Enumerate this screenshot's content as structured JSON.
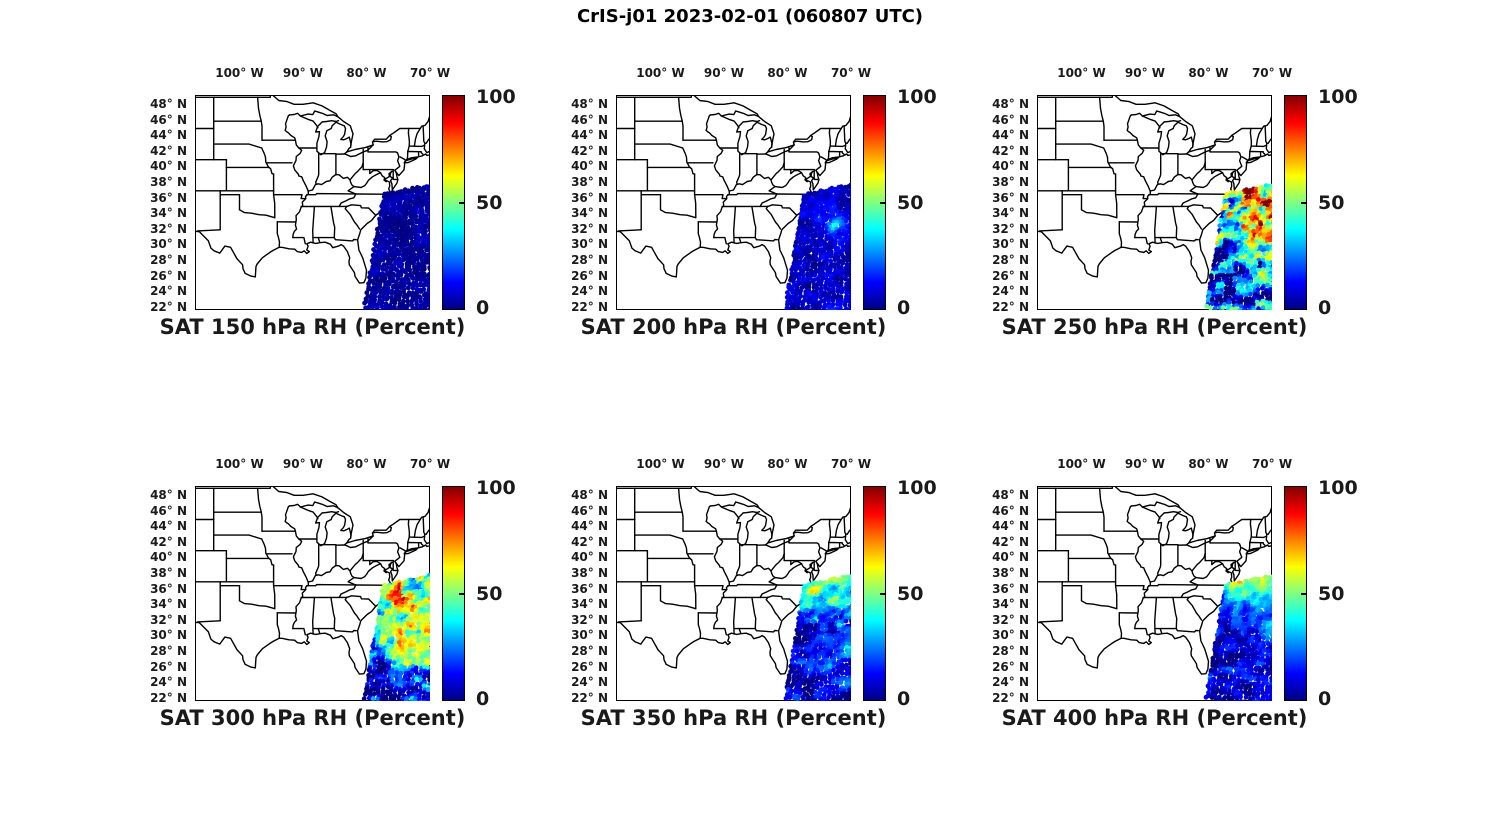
{
  "figure_title": "CrIS-j01 2023-02-01 (060807 UTC)",
  "colorbar": {
    "max": "100",
    "mid": "50",
    "min": "0"
  },
  "axes": {
    "lon_tick_labels": [
      "100° W",
      "90° W",
      "80° W",
      "70° W"
    ],
    "lon_tick_deg": [
      -100,
      -90,
      -80,
      -70
    ],
    "lat_tick_labels": [
      "48° N",
      "46° N",
      "44° N",
      "42° N",
      "40° N",
      "38° N",
      "36° N",
      "34° N",
      "32° N",
      "30° N",
      "28° N",
      "26° N",
      "24° N",
      "22° N"
    ],
    "lat_tick_deg": [
      48,
      46,
      44,
      42,
      40,
      38,
      36,
      34,
      32,
      30,
      28,
      26,
      24,
      22
    ]
  },
  "chart_data": {
    "type": "scatter",
    "subtype": "satellite-swath-map",
    "title": "CrIS-j01 2023-02-01 (060807 UTC)",
    "variable": "Relative Humidity",
    "units": "Percent",
    "basemap": "Conterminous US state boundaries (eastern/central)",
    "lon_range": [
      -107,
      -70
    ],
    "lat_range": [
      21.7,
      49.3
    ],
    "lon_ticks_deg_w": [
      100,
      90,
      80,
      70
    ],
    "lat_ticks_deg_n": [
      48,
      46,
      44,
      42,
      40,
      38,
      36,
      34,
      32,
      30,
      28,
      26,
      24,
      22
    ],
    "swath_extent": {
      "lon": [
        -77.6,
        -65.3
      ],
      "lat": [
        21.8,
        37.6
      ]
    },
    "colorbar": {
      "min": 0,
      "max": 100,
      "ticks": [
        0,
        50,
        100
      ],
      "colormap": "jet",
      "colormap_hex": [
        "#000084",
        "#0000ff",
        "#00ffff",
        "#80ff80",
        "#ffff00",
        "#ff0000",
        "#840000"
      ]
    },
    "panels": [
      {
        "title": "SAT 150 hPa RH (Percent)",
        "pressure_hpa": 150,
        "texture_variability": 2,
        "rh_grid": [
          [
            4,
            3,
            3,
            4,
            3,
            3
          ],
          [
            3,
            4,
            3,
            3,
            4,
            3
          ],
          [
            4,
            3,
            4,
            3,
            3,
            4
          ],
          [
            3,
            3,
            4,
            4,
            3,
            3
          ],
          [
            4,
            4,
            3,
            3,
            4,
            3
          ],
          [
            3,
            3,
            3,
            4,
            3,
            4
          ],
          [
            4,
            3,
            4,
            3,
            4,
            3
          ],
          [
            3,
            4,
            3,
            3,
            3,
            4
          ],
          [
            3,
            3,
            4,
            3,
            4,
            3
          ],
          [
            4,
            3,
            3,
            4,
            3,
            3
          ],
          [
            3,
            4,
            3,
            3,
            4,
            4
          ],
          [
            4,
            3,
            4,
            3,
            3,
            3
          ],
          [
            3,
            3,
            3,
            4,
            4,
            3
          ],
          [
            3,
            4,
            3,
            3,
            3,
            4
          ]
        ]
      },
      {
        "title": "SAT 200 hPa RH (Percent)",
        "pressure_hpa": 200,
        "texture_variability": 4,
        "rh_grid": [
          [
            8,
            7,
            7,
            8,
            7,
            7
          ],
          [
            7,
            8,
            9,
            8,
            7,
            8
          ],
          [
            8,
            9,
            14,
            10,
            8,
            7
          ],
          [
            8,
            10,
            18,
            12,
            9,
            8
          ],
          [
            7,
            9,
            12,
            38,
            22,
            9
          ],
          [
            8,
            8,
            9,
            14,
            10,
            8
          ],
          [
            7,
            8,
            8,
            9,
            8,
            7
          ],
          [
            7,
            7,
            8,
            8,
            7,
            7
          ],
          [
            8,
            7,
            7,
            8,
            8,
            7
          ],
          [
            7,
            8,
            7,
            7,
            8,
            7
          ],
          [
            7,
            7,
            8,
            7,
            7,
            8
          ],
          [
            8,
            7,
            7,
            8,
            7,
            7
          ],
          [
            7,
            8,
            7,
            7,
            7,
            7
          ],
          [
            7,
            7,
            8,
            7,
            7,
            7
          ]
        ]
      },
      {
        "title": "SAT 250 hPa RH (Percent)",
        "pressure_hpa": 250,
        "texture_variability": 22,
        "rh_grid": [
          [
            45,
            70,
            90,
            55,
            80,
            60
          ],
          [
            60,
            35,
            85,
            95,
            45,
            75
          ],
          [
            30,
            75,
            50,
            88,
            92,
            40
          ],
          [
            55,
            40,
            95,
            60,
            35,
            85
          ],
          [
            35,
            60,
            45,
            75,
            55,
            50
          ],
          [
            25,
            45,
            60,
            55,
            70,
            60
          ],
          [
            20,
            35,
            55,
            65,
            60,
            55
          ],
          [
            15,
            25,
            40,
            55,
            50,
            45
          ],
          [
            12,
            18,
            25,
            35,
            40,
            30
          ],
          [
            10,
            14,
            18,
            22,
            25,
            20
          ],
          [
            8,
            10,
            12,
            15,
            18,
            14
          ],
          [
            7,
            8,
            10,
            12,
            12,
            10
          ],
          [
            6,
            7,
            8,
            9,
            10,
            8
          ],
          [
            5,
            6,
            7,
            8,
            8,
            7
          ]
        ]
      },
      {
        "title": "SAT 300 hPa RH (Percent)",
        "pressure_hpa": 300,
        "texture_variability": 16,
        "rh_grid": [
          [
            40,
            50,
            45,
            55,
            48,
            42
          ],
          [
            45,
            85,
            55,
            42,
            60,
            50
          ],
          [
            38,
            48,
            88,
            52,
            45,
            55
          ],
          [
            42,
            38,
            55,
            90,
            58,
            45
          ],
          [
            35,
            45,
            50,
            60,
            52,
            48
          ],
          [
            30,
            42,
            55,
            62,
            58,
            50
          ],
          [
            28,
            40,
            52,
            60,
            65,
            78
          ],
          [
            25,
            38,
            48,
            58,
            72,
            88
          ],
          [
            22,
            32,
            45,
            55,
            60,
            50
          ],
          [
            15,
            22,
            35,
            45,
            40,
            30
          ],
          [
            10,
            15,
            22,
            30,
            28,
            20
          ],
          [
            8,
            10,
            14,
            18,
            16,
            12
          ],
          [
            6,
            8,
            10,
            12,
            10,
            9
          ],
          [
            5,
            6,
            8,
            9,
            8,
            7
          ]
        ]
      },
      {
        "title": "SAT 350 hPa RH (Percent)",
        "pressure_hpa": 350,
        "texture_variability": 9,
        "rh_grid": [
          [
            40,
            55,
            45,
            50,
            42,
            38
          ],
          [
            35,
            65,
            48,
            40,
            52,
            45
          ],
          [
            30,
            38,
            42,
            55,
            35,
            32
          ],
          [
            18,
            25,
            30,
            28,
            35,
            25
          ],
          [
            12,
            18,
            20,
            22,
            18,
            25
          ],
          [
            10,
            14,
            15,
            18,
            22,
            18
          ],
          [
            9,
            12,
            12,
            15,
            25,
            20
          ],
          [
            8,
            10,
            11,
            14,
            28,
            22
          ],
          [
            8,
            9,
            10,
            12,
            22,
            18
          ],
          [
            7,
            9,
            10,
            15,
            18,
            14
          ],
          [
            7,
            8,
            9,
            12,
            14,
            10
          ],
          [
            6,
            8,
            8,
            10,
            10,
            9
          ],
          [
            6,
            7,
            8,
            9,
            8,
            8
          ],
          [
            6,
            7,
            7,
            8,
            8,
            7
          ]
        ]
      },
      {
        "title": "SAT 400 hPa RH (Percent)",
        "pressure_hpa": 400,
        "texture_variability": 8,
        "rh_grid": [
          [
            48,
            58,
            52,
            55,
            50,
            45
          ],
          [
            30,
            40,
            55,
            38,
            45,
            52
          ],
          [
            18,
            25,
            30,
            35,
            28,
            38
          ],
          [
            14,
            18,
            20,
            25,
            30,
            25
          ],
          [
            12,
            15,
            16,
            20,
            25,
            28
          ],
          [
            10,
            12,
            14,
            18,
            22,
            25
          ],
          [
            9,
            11,
            12,
            16,
            25,
            20
          ],
          [
            8,
            10,
            11,
            14,
            20,
            16
          ],
          [
            8,
            9,
            10,
            12,
            15,
            12
          ],
          [
            7,
            9,
            9,
            11,
            12,
            10
          ],
          [
            7,
            8,
            9,
            10,
            10,
            9
          ],
          [
            10,
            8,
            8,
            9,
            9,
            8
          ],
          [
            12,
            10,
            9,
            8,
            8,
            8
          ],
          [
            8,
            9,
            8,
            8,
            7,
            7
          ]
        ]
      }
    ]
  }
}
